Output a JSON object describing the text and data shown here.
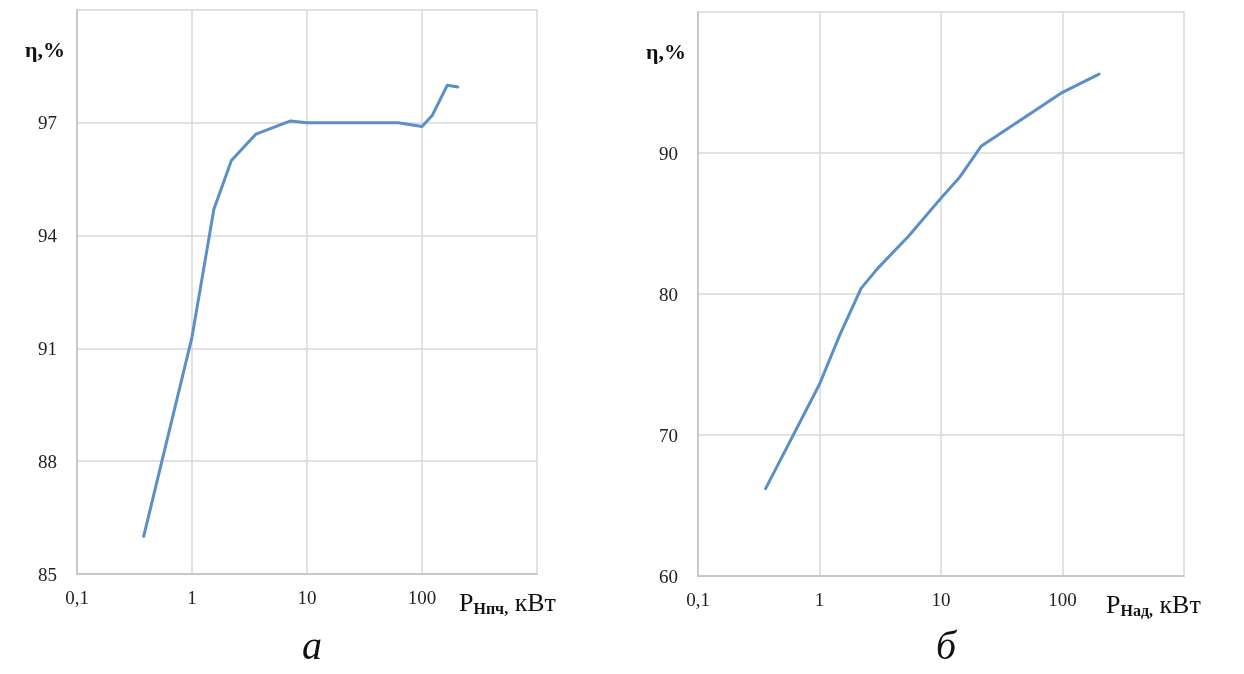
{
  "chart_data": [
    {
      "type": "line",
      "title": "а",
      "xlabel": "P$_{Нпч,}$ кВт",
      "ylabel": "η,%",
      "log": "x",
      "grid": true,
      "marker": "none",
      "line_style": "solid",
      "xlim": [
        0.1,
        1000
      ],
      "xticks": [
        {
          "value": 0.1,
          "label": "0,1"
        },
        1,
        10,
        100
      ],
      "ylim": [
        85,
        100
      ],
      "yticks": [
        85,
        88,
        91,
        94,
        97
      ],
      "series": [
        {
          "color": "#5b8fc8",
          "x": [
            0.38,
            1,
            1.55,
            2.2,
            3.6,
            7.2,
            10,
            62,
            100,
            123,
            166,
            205
          ],
          "values": [
            86.0,
            91.3,
            94.7,
            96.0,
            96.7,
            97.05,
            97.0,
            97.0,
            96.9,
            97.2,
            98.0,
            97.95
          ]
        }
      ]
    },
    {
      "type": "line",
      "title": "б",
      "xlabel": "P$_{Над,}$ кВт",
      "ylabel": "η,%",
      "log": "x",
      "grid": true,
      "marker": "none",
      "line_style": "solid",
      "xlim": [
        0.1,
        1000
      ],
      "xticks": [
        {
          "value": 0.1,
          "label": "0,1"
        },
        1,
        10,
        100
      ],
      "ylim": [
        60,
        100
      ],
      "yticks": [
        60,
        70,
        80,
        90
      ],
      "series": [
        {
          "color": "#5b8fc8",
          "x": [
            0.36,
            1,
            1.47,
            2.2,
            3.0,
            5.4,
            10,
            14.3,
            21.5,
            35,
            100,
            200
          ],
          "values": [
            66.2,
            73.6,
            77.1,
            80.4,
            81.8,
            84.1,
            86.8,
            88.3,
            90.5,
            91.7,
            94.3,
            95.6
          ]
        }
      ]
    }
  ]
}
